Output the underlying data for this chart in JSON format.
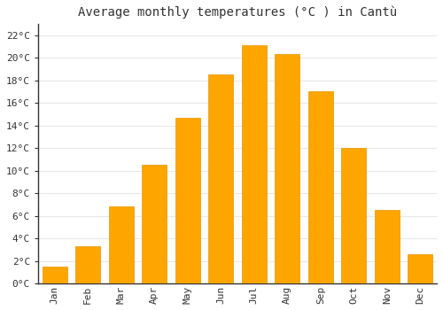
{
  "months": [
    "Jan",
    "Feb",
    "Mar",
    "Apr",
    "May",
    "Jun",
    "Jul",
    "Aug",
    "Sep",
    "Oct",
    "Nov",
    "Dec"
  ],
  "temperatures": [
    1.5,
    3.3,
    6.8,
    10.5,
    14.7,
    18.5,
    21.1,
    20.3,
    17.0,
    12.0,
    6.5,
    2.6
  ],
  "bar_color_face": "#FFA500",
  "bar_color_edge": "#E69500",
  "title": "Average monthly temperatures (°C ) in Cantù",
  "ylabel_ticks": [
    "0°C",
    "2°C",
    "4°C",
    "6°C",
    "8°C",
    "10°C",
    "12°C",
    "14°C",
    "16°C",
    "18°C",
    "20°C",
    "22°C"
  ],
  "ytick_values": [
    0,
    2,
    4,
    6,
    8,
    10,
    12,
    14,
    16,
    18,
    20,
    22
  ],
  "ylim": [
    0,
    23
  ],
  "background_color": "#ffffff",
  "plot_bg_color": "#ffffff",
  "grid_color": "#e8e8e8",
  "title_fontsize": 10,
  "tick_fontsize": 8,
  "font_family": "monospace"
}
